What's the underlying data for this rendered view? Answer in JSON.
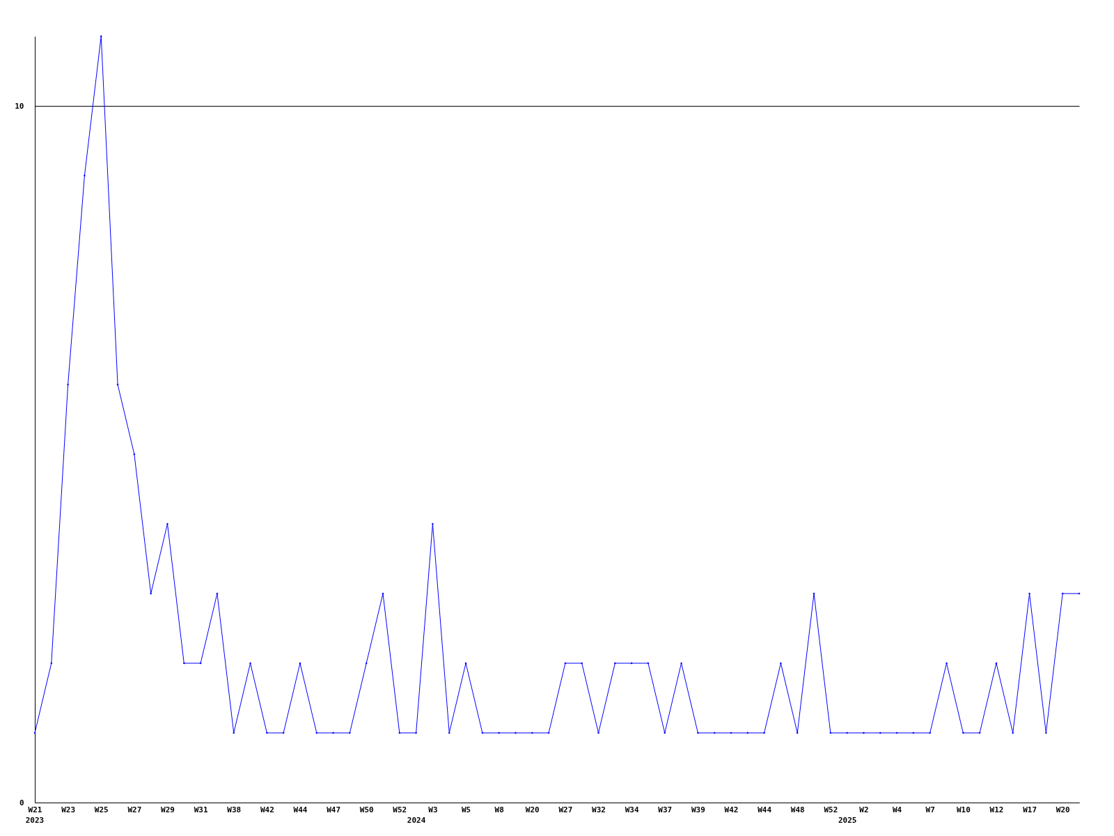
{
  "chart_data": {
    "type": "line",
    "categories": [
      "W21",
      null,
      "W23",
      null,
      "W25",
      null,
      "W27",
      null,
      "W29",
      null,
      "W31",
      null,
      "W38",
      null,
      "W42",
      null,
      "W44",
      null,
      "W47",
      null,
      "W50",
      null,
      "W52",
      "2024",
      "W3",
      null,
      "W5",
      null,
      "W8",
      null,
      "W20",
      null,
      "W27",
      null,
      "W32",
      null,
      "W34",
      null,
      "W37",
      null,
      "W39",
      null,
      "W42",
      null,
      "W44",
      null,
      "W48",
      null,
      "W52",
      "2025",
      "W2",
      null,
      "W4",
      null,
      "W7",
      null,
      "W10",
      null,
      "W12",
      null,
      "W17",
      null,
      "W20",
      null
    ],
    "series": [
      {
        "color": "#0000ff",
        "values": [
          1,
          2,
          6,
          9,
          11,
          6,
          5,
          3,
          4,
          2,
          2,
          3,
          1,
          2,
          1,
          1,
          2,
          1,
          1,
          1,
          2,
          3,
          1,
          1,
          4,
          1,
          2,
          1,
          1,
          1,
          1,
          1,
          2,
          2,
          1,
          2,
          2,
          2,
          1,
          2,
          1,
          1,
          1,
          1,
          1,
          2,
          1,
          3,
          1,
          1,
          1,
          1,
          1,
          1,
          1,
          2,
          1,
          1,
          2,
          1,
          3,
          1,
          3,
          3
        ]
      }
    ],
    "ylim": [
      0,
      11
    ],
    "yticks": [
      0,
      10
    ],
    "grid": "y",
    "marker": "diamond",
    "line_style": "solid",
    "annotations": [
      "2023"
    ]
  }
}
